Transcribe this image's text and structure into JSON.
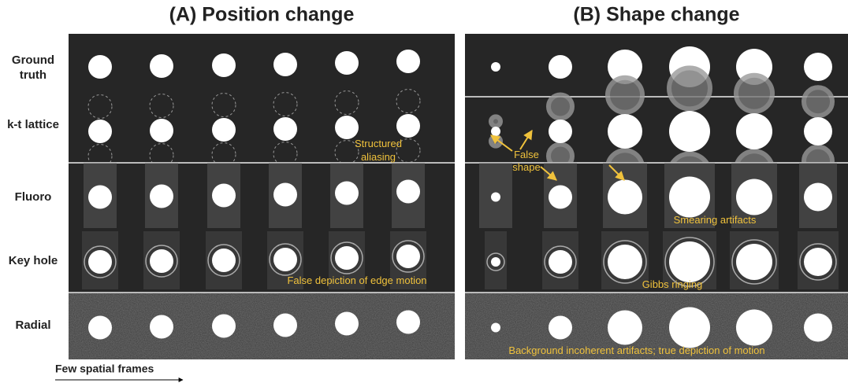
{
  "panels": [
    {
      "title": "(A) Position change"
    },
    {
      "title": "(B) Shape change"
    }
  ],
  "row_labels": [
    [
      "Ground",
      "truth"
    ],
    [
      "k-t lattice"
    ],
    [
      "Fluoro"
    ],
    [
      "Key hole"
    ],
    [
      "Radial"
    ]
  ],
  "annotations": {
    "structured_aliasing": [
      "Structured",
      "aliasing"
    ],
    "false_shape": [
      "False",
      "shape"
    ],
    "smearing": "Smearing artifacts",
    "edge_motion": "False depiction of edge motion",
    "gibbs": "Gibbs ringing",
    "background": "Background incoherent artifacts; true depiction of motion"
  },
  "footer": "Few spatial frames"
}
